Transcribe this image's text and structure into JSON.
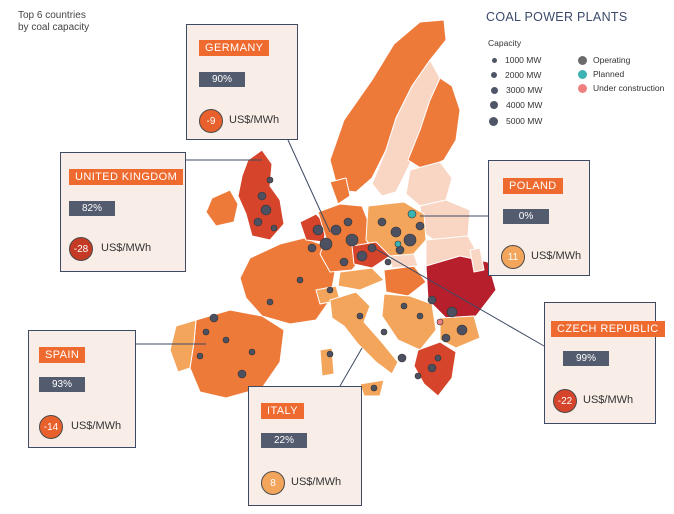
{
  "header": {
    "line1": "Top 6 countries",
    "line2": "by coal capacity"
  },
  "legend": {
    "title": "COAL POWER PLANTS",
    "capacity_title": "Capacity",
    "capacity": [
      "1000 MW",
      "2000 MW",
      "3000 MW",
      "4000 MW",
      "5000 MW"
    ],
    "status": [
      {
        "label": "Operating",
        "color": "#6b6b6b"
      },
      {
        "label": "Planned",
        "color": "#3bb3b3"
      },
      {
        "label": "Under construction",
        "color": "#f08080"
      }
    ]
  },
  "countries": [
    {
      "name": "GERMANY",
      "share": "90%",
      "price": "-9",
      "unit": "US$/MWh",
      "circle_color": "#e8602b"
    },
    {
      "name": "UNITED KINGDOM",
      "share": "82%",
      "price": "-28",
      "unit": "US$/MWh",
      "circle_color": "#c43a24"
    },
    {
      "name": "POLAND",
      "share": "0%",
      "price": "11",
      "unit": "US$/MWh",
      "circle_color": "#f3a55c"
    },
    {
      "name": "SPAIN",
      "share": "93%",
      "price": "-14",
      "unit": "US$/MWh",
      "circle_color": "#e8602b"
    },
    {
      "name": "ITALY",
      "share": "22%",
      "price": "8",
      "unit": "US$/MWh",
      "circle_color": "#f3a55c"
    },
    {
      "name": "CZECH REPUBLIC",
      "share": "99%",
      "price": "-22",
      "unit": "US$/MWh",
      "circle_color": "#d6452b"
    }
  ],
  "colors": {
    "land_light": "#f9d6c4",
    "land_mid": "#f3a55c",
    "land_orange": "#ee7a3a",
    "land_dark": "#d6452b",
    "land_darkest": "#b81f2c",
    "card_border": "#3e4a63",
    "label_bg": "#ee6a2f"
  }
}
